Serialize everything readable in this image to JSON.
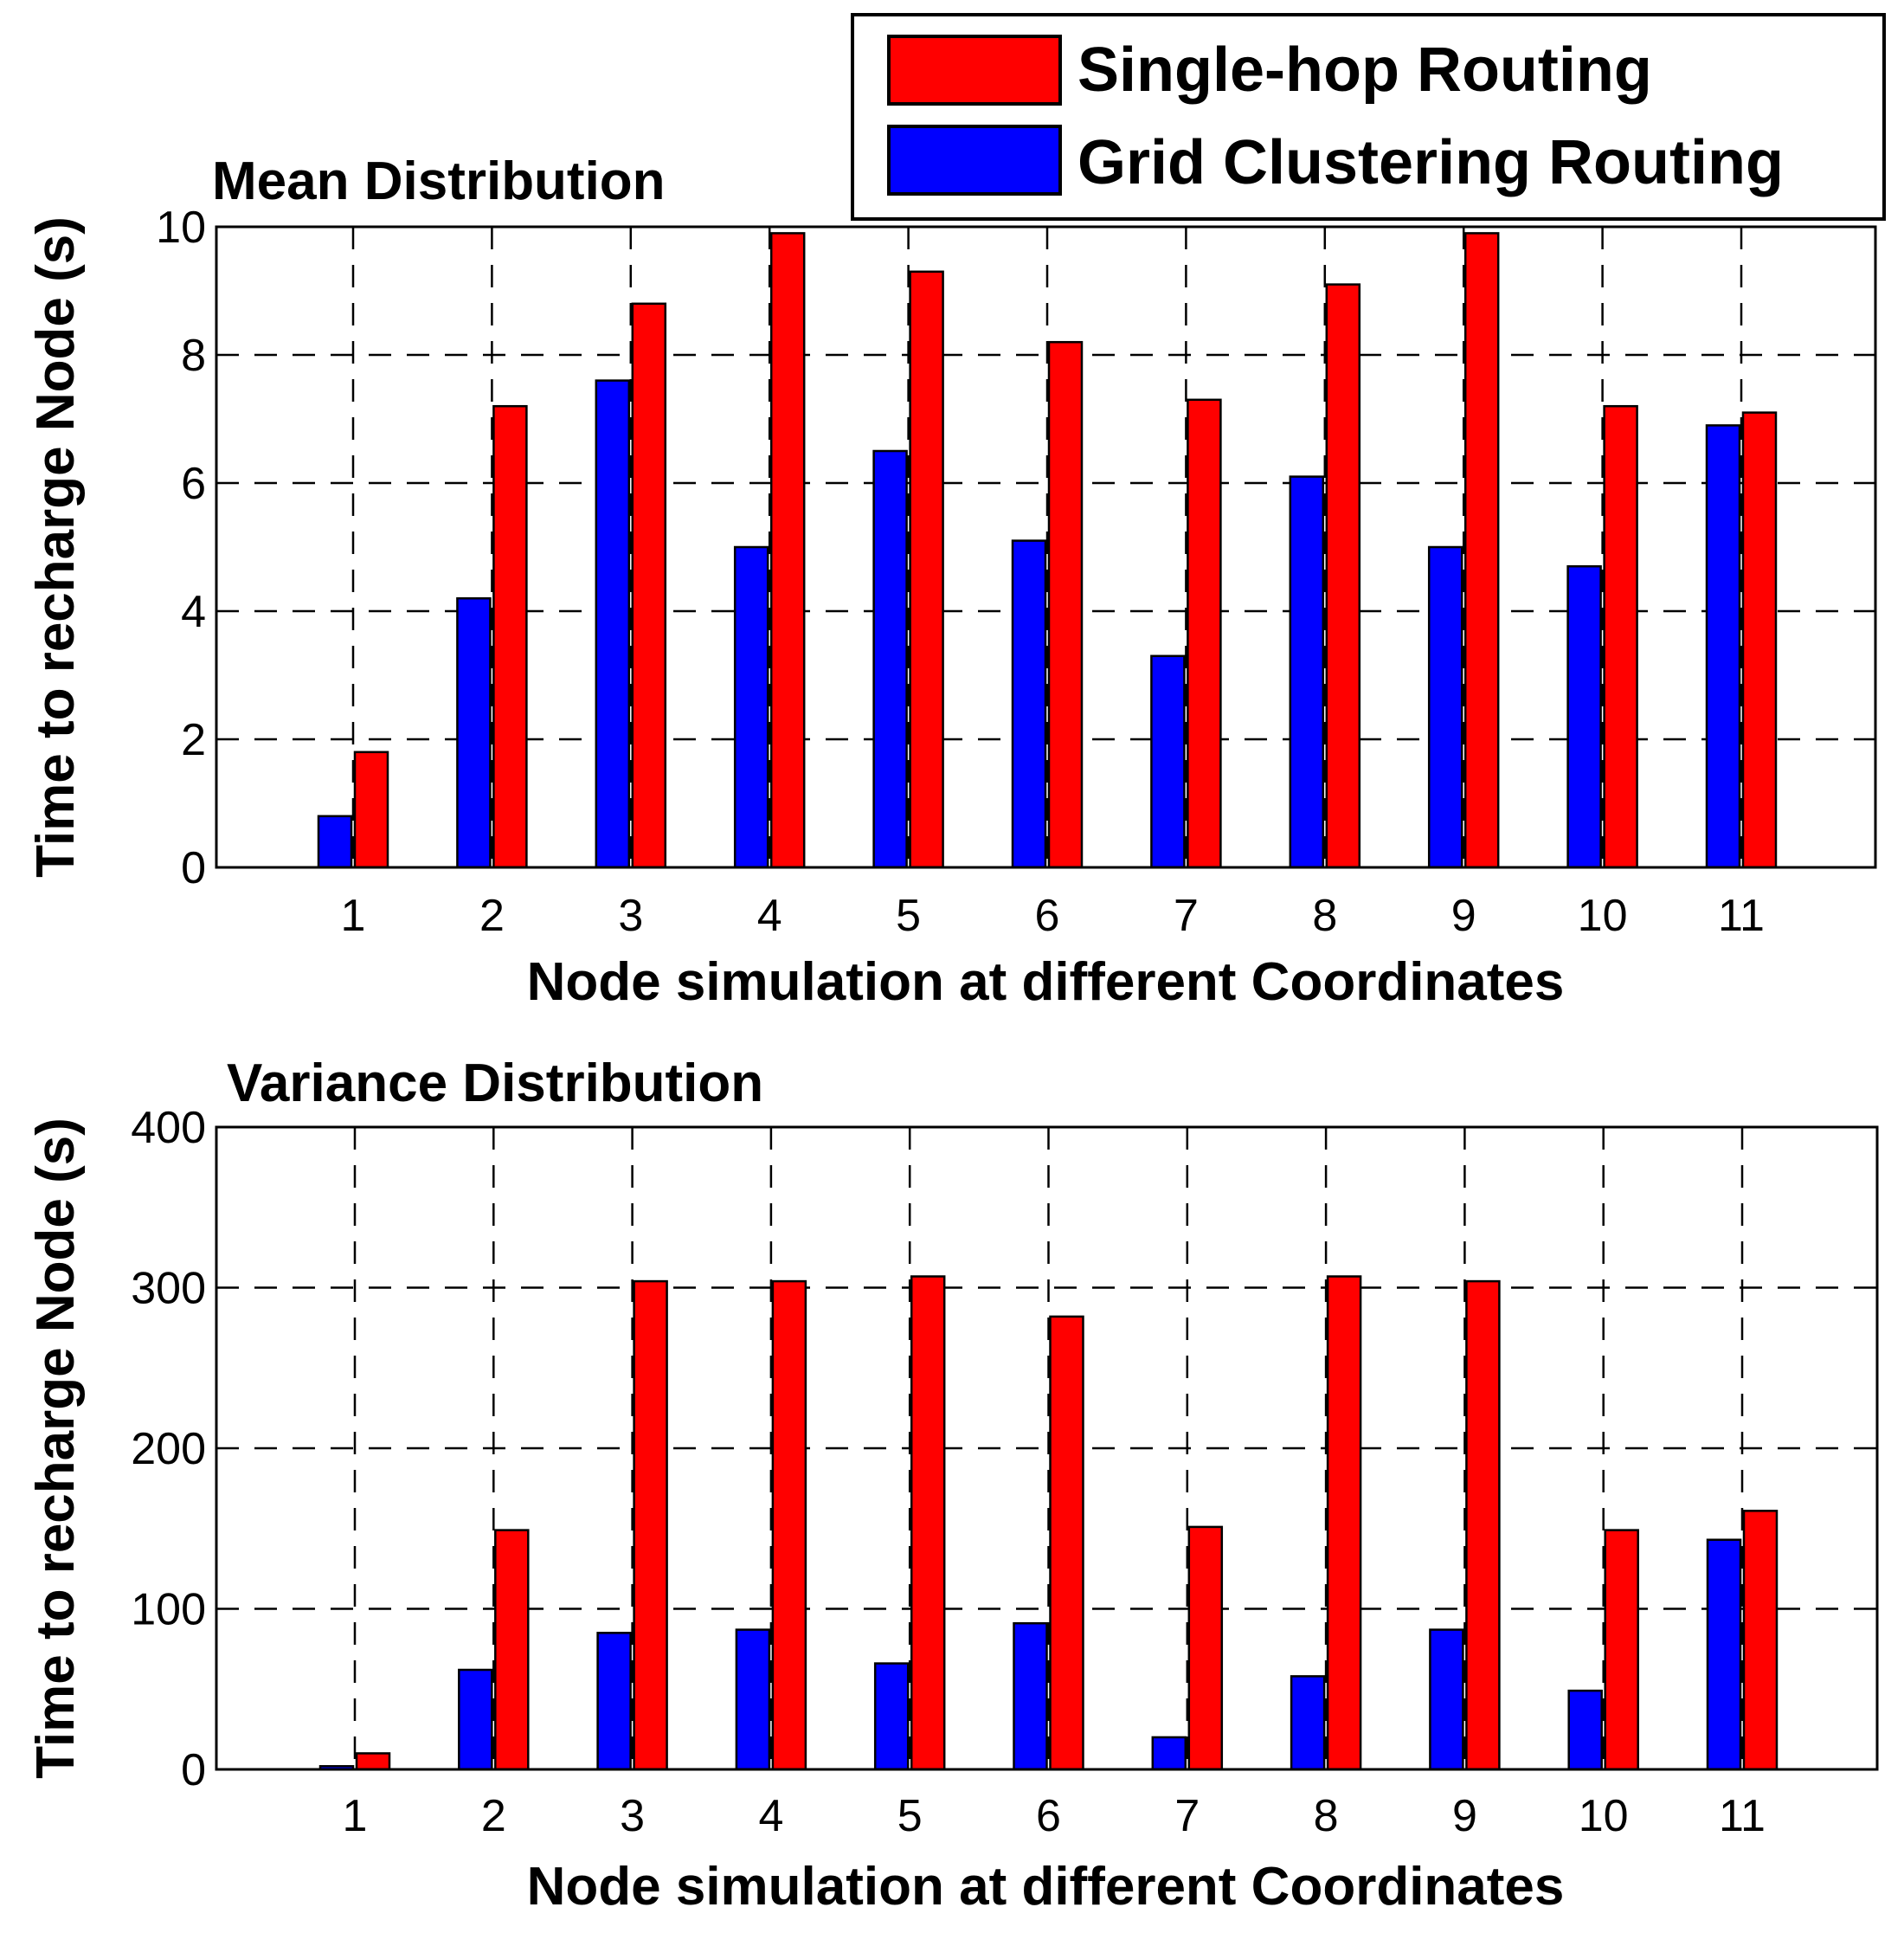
{
  "legend": [
    {
      "label": "Single-hop Routing",
      "color": "#ff0000"
    },
    {
      "label": "Grid Clustering Routing",
      "color": "#0000ff"
    }
  ],
  "chart_data": [
    {
      "type": "bar",
      "title": "Mean Distribution",
      "xlabel": "Node simulation at different Coordinates",
      "ylabel": "Time to recharge Node (s)",
      "categories": [
        "1",
        "2",
        "3",
        "4",
        "5",
        "6",
        "7",
        "8",
        "9",
        "10",
        "11"
      ],
      "ylim": [
        0,
        10
      ],
      "yticks": [
        "0",
        "2",
        "4",
        "6",
        "8",
        "10"
      ],
      "grid": true,
      "legend_position": "top-right",
      "series": [
        {
          "name": "Grid Clustering Routing",
          "color": "#0000ff",
          "values": [
            0.8,
            4.2,
            7.6,
            5.0,
            6.5,
            5.1,
            3.3,
            6.1,
            5.0,
            4.7,
            6.9
          ]
        },
        {
          "name": "Single-hop Routing",
          "color": "#ff0000",
          "values": [
            1.8,
            7.2,
            8.8,
            9.9,
            9.3,
            8.2,
            7.3,
            9.1,
            9.9,
            7.2,
            7.1
          ]
        }
      ]
    },
    {
      "type": "bar",
      "title": "Variance Distribution",
      "xlabel": "Node simulation at different Coordinates",
      "ylabel": "Time to recharge Node (s)",
      "categories": [
        "1",
        "2",
        "3",
        "4",
        "5",
        "6",
        "7",
        "8",
        "9",
        "10",
        "11"
      ],
      "ylim": [
        0,
        400
      ],
      "yticks": [
        "0",
        "100",
        "200",
        "300",
        "400"
      ],
      "grid": true,
      "series": [
        {
          "name": "Grid Clustering Routing",
          "color": "#0000ff",
          "values": [
            2,
            62,
            85,
            87,
            66,
            91,
            20,
            58,
            87,
            49,
            143
          ]
        },
        {
          "name": "Single-hop Routing",
          "color": "#ff0000",
          "values": [
            10,
            149,
            304,
            304,
            307,
            282,
            151,
            307,
            304,
            149,
            161
          ]
        }
      ]
    }
  ]
}
